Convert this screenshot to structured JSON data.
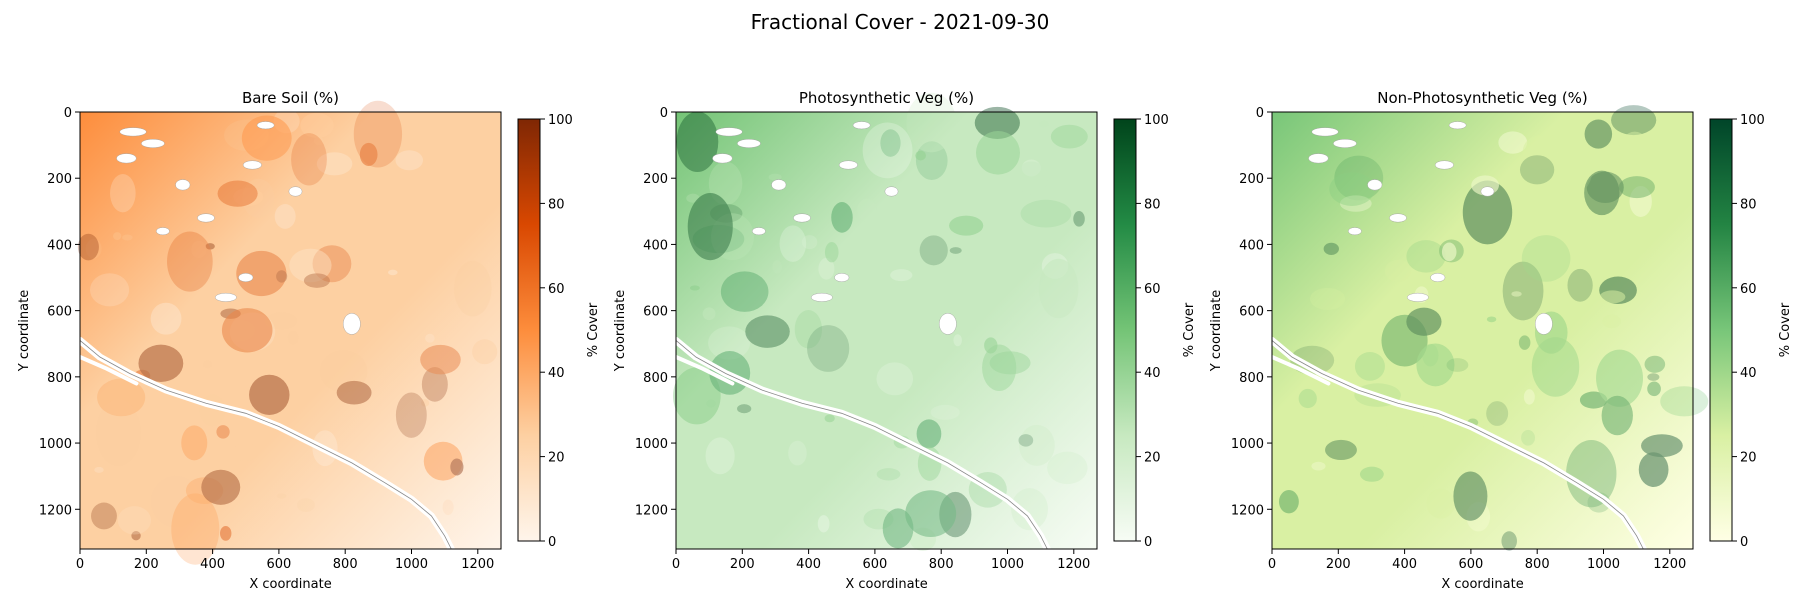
{
  "figure": {
    "title": "Fractional Cover - 2021-09-30"
  },
  "chart_data": [
    {
      "type": "heatmap",
      "title": "Bare Soil (%)",
      "xlabel": "X coordinate",
      "ylabel": "Y coordinate",
      "xlim": [
        0,
        1270
      ],
      "ylim": [
        1320,
        0
      ],
      "xticks": [
        0,
        200,
        400,
        600,
        800,
        1000,
        1200
      ],
      "yticks": [
        0,
        200,
        400,
        600,
        800,
        1000,
        1200
      ],
      "colormap": "Oranges",
      "colors": [
        "#fff5eb",
        "#fdd0a2",
        "#fd8d3c",
        "#d94801",
        "#7f2704"
      ],
      "colorbar": {
        "label": "% Cover",
        "range": [
          0,
          100
        ],
        "ticks": [
          0,
          20,
          40,
          60,
          80,
          100
        ]
      }
    },
    {
      "type": "heatmap",
      "title": "Photosynthetic Veg (%)",
      "xlabel": "X coordinate",
      "ylabel": "Y coordinate",
      "xlim": [
        0,
        1270
      ],
      "ylim": [
        1320,
        0
      ],
      "xticks": [
        0,
        200,
        400,
        600,
        800,
        1000,
        1200
      ],
      "yticks": [
        0,
        200,
        400,
        600,
        800,
        1000,
        1200
      ],
      "colormap": "Greens",
      "colors": [
        "#f7fcf5",
        "#c7e9c0",
        "#74c476",
        "#238b45",
        "#00441b"
      ],
      "colorbar": {
        "label": "% Cover",
        "range": [
          0,
          100
        ],
        "ticks": [
          0,
          20,
          40,
          60,
          80,
          100
        ]
      }
    },
    {
      "type": "heatmap",
      "title": "Non-Photosynthetic Veg (%)",
      "xlabel": "X coordinate",
      "ylabel": "Y coordinate",
      "xlim": [
        0,
        1270
      ],
      "ylim": [
        1320,
        0
      ],
      "xticks": [
        0,
        200,
        400,
        600,
        800,
        1000,
        1200
      ],
      "yticks": [
        0,
        200,
        400,
        600,
        800,
        1000,
        1200
      ],
      "colormap": "YlGn",
      "colors": [
        "#ffffe5",
        "#d9f0a3",
        "#78c679",
        "#238443",
        "#004529"
      ],
      "colorbar": {
        "label": "% Cover",
        "range": [
          0,
          100
        ],
        "ticks": [
          0,
          20,
          40,
          60,
          80,
          100
        ]
      }
    }
  ]
}
